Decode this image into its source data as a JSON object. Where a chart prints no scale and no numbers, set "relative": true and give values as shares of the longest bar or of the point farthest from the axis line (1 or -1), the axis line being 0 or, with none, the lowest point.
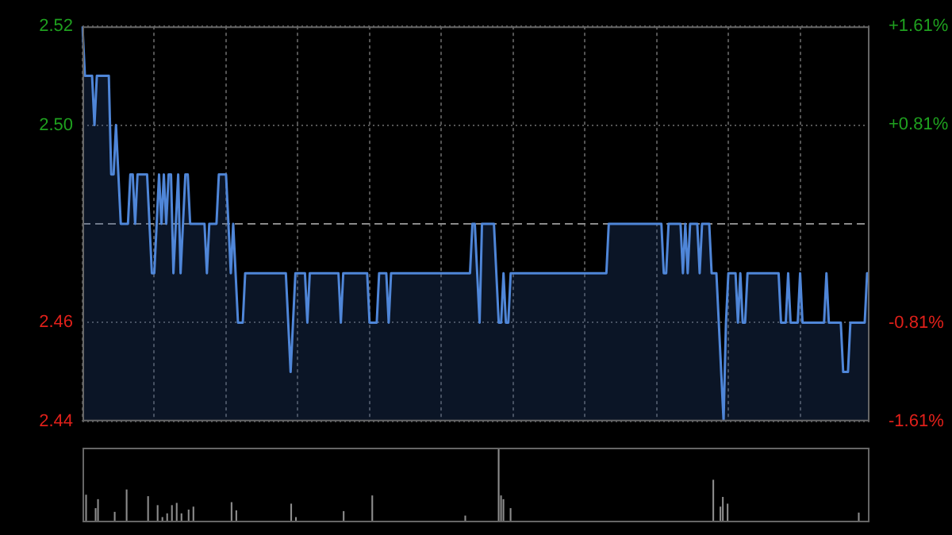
{
  "chart_data": [
    {
      "type": "area",
      "categories": [
        null,
        null,
        null,
        null,
        null,
        null,
        null,
        null,
        null,
        null,
        null,
        null,
        null,
        null,
        null,
        null,
        null,
        null,
        null,
        null,
        null,
        null,
        null,
        null,
        null,
        null,
        null,
        null,
        null,
        null,
        null,
        null,
        null,
        null,
        null,
        null,
        null,
        null,
        null,
        null,
        null,
        null,
        null,
        null,
        null,
        null,
        null,
        null,
        null,
        null,
        null,
        null,
        null,
        null,
        null,
        null,
        null,
        null,
        null,
        null,
        null,
        null,
        null,
        null,
        null,
        null,
        null,
        null,
        null,
        null,
        null,
        null,
        null,
        null,
        null,
        null,
        null,
        null,
        null,
        null,
        null,
        null,
        null,
        null,
        null,
        null,
        null,
        null,
        null,
        null,
        null,
        null,
        null,
        null,
        null,
        null,
        null,
        null,
        null,
        null,
        null,
        null,
        null,
        null,
        null,
        null,
        null,
        null,
        null,
        null,
        null,
        null,
        null,
        null,
        null,
        null,
        null,
        null,
        null,
        null,
        null,
        null,
        null,
        null,
        null,
        null,
        null,
        null,
        null,
        null,
        null,
        null,
        null,
        null,
        null,
        null,
        null,
        null,
        null,
        null,
        null,
        null,
        null,
        null,
        null,
        null,
        null,
        null,
        null,
        null,
        null,
        null,
        null,
        null,
        null,
        null,
        null,
        null,
        null,
        null,
        null,
        null,
        null,
        null,
        null,
        null,
        null,
        null,
        null,
        null,
        null,
        null,
        null,
        null,
        null,
        null,
        null,
        null,
        null,
        null,
        null,
        null,
        null,
        null,
        null,
        null,
        null,
        null,
        null,
        null,
        null,
        null,
        null,
        null,
        null,
        null,
        null,
        null,
        null,
        null,
        null,
        null,
        null,
        null,
        null,
        null,
        null,
        null,
        null,
        null,
        null,
        null,
        null,
        null,
        null,
        null,
        null,
        null,
        null,
        null,
        null,
        null,
        null,
        null,
        null,
        null,
        null,
        null,
        null,
        null,
        null,
        null,
        null,
        null,
        null,
        null,
        null,
        null,
        null,
        null,
        null,
        null,
        null,
        null,
        null,
        null,
        null,
        null,
        null,
        null,
        null,
        null,
        null,
        null,
        null,
        null,
        null,
        null,
        null,
        null,
        null,
        null,
        null,
        null,
        null,
        null,
        null,
        null,
        null,
        null,
        null,
        null,
        null,
        null,
        null,
        null,
        null,
        null,
        null,
        null,
        null,
        null,
        null,
        null,
        null,
        null,
        null,
        null,
        null,
        null,
        null,
        null,
        null,
        null,
        null,
        null,
        null,
        null,
        null,
        null,
        null,
        null,
        null,
        null,
        null,
        null,
        null,
        null,
        null,
        null,
        null,
        null,
        null,
        null,
        null,
        null,
        null,
        null,
        null,
        null,
        null,
        null,
        null,
        null,
        null,
        null,
        null,
        null,
        null,
        null
      ],
      "series": [
        {
          "color": "#4f86d8",
          "values": [
            2.52,
            2.51,
            2.51,
            2.51,
            2.51,
            2.5,
            2.51,
            2.51,
            2.51,
            2.51,
            2.51,
            2.51,
            2.49,
            2.49,
            2.5,
            2.49,
            2.48,
            2.48,
            2.48,
            2.48,
            2.49,
            2.49,
            2.48,
            2.49,
            2.49,
            2.49,
            2.49,
            2.49,
            2.48,
            2.47,
            2.47,
            2.48,
            2.49,
            2.48,
            2.49,
            2.48,
            2.49,
            2.49,
            2.47,
            2.48,
            2.49,
            2.47,
            2.48,
            2.49,
            2.49,
            2.48,
            2.48,
            2.48,
            2.48,
            2.48,
            2.48,
            2.48,
            2.47,
            2.48,
            2.48,
            2.48,
            2.48,
            2.49,
            2.49,
            2.49,
            2.49,
            2.48,
            2.47,
            2.48,
            2.47,
            2.46,
            2.46,
            2.46,
            2.47,
            2.47,
            2.47,
            2.47,
            2.47,
            2.47,
            2.47,
            2.47,
            2.47,
            2.47,
            2.47,
            2.47,
            2.47,
            2.47,
            2.47,
            2.47,
            2.47,
            2.47,
            2.46,
            2.45,
            2.46,
            2.47,
            2.47,
            2.47,
            2.47,
            2.47,
            2.46,
            2.47,
            2.47,
            2.47,
            2.47,
            2.47,
            2.47,
            2.47,
            2.47,
            2.47,
            2.47,
            2.47,
            2.47,
            2.47,
            2.46,
            2.47,
            2.47,
            2.47,
            2.47,
            2.47,
            2.47,
            2.47,
            2.47,
            2.47,
            2.47,
            2.47,
            2.46,
            2.46,
            2.46,
            2.46,
            2.47,
            2.47,
            2.47,
            2.47,
            2.46,
            2.47,
            2.47,
            2.47,
            2.47,
            2.47,
            2.47,
            2.47,
            2.47,
            2.47,
            2.47,
            2.47,
            2.47,
            2.47,
            2.47,
            2.47,
            2.47,
            2.47,
            2.47,
            2.47,
            2.47,
            2.47,
            2.47,
            2.47,
            2.47,
            2.47,
            2.47,
            2.47,
            2.47,
            2.47,
            2.47,
            2.47,
            2.47,
            2.47,
            2.47,
            2.48,
            2.48,
            2.47,
            2.46,
            2.48,
            2.48,
            2.48,
            2.48,
            2.48,
            2.48,
            2.47,
            2.46,
            2.46,
            2.47,
            2.46,
            2.46,
            2.47,
            2.47,
            2.47,
            2.47,
            2.47,
            2.47,
            2.47,
            2.47,
            2.47,
            2.47,
            2.47,
            2.47,
            2.47,
            2.47,
            2.47,
            2.47,
            2.47,
            2.47,
            2.47,
            2.47,
            2.47,
            2.47,
            2.47,
            2.47,
            2.47,
            2.47,
            2.47,
            2.47,
            2.47,
            2.47,
            2.47,
            2.47,
            2.47,
            2.47,
            2.47,
            2.47,
            2.47,
            2.47,
            2.47,
            2.47,
            2.47,
            2.48,
            2.48,
            2.48,
            2.48,
            2.48,
            2.48,
            2.48,
            2.48,
            2.48,
            2.48,
            2.48,
            2.48,
            2.48,
            2.48,
            2.48,
            2.48,
            2.48,
            2.48,
            2.48,
            2.48,
            2.48,
            2.48,
            2.48,
            2.47,
            2.47,
            2.48,
            2.48,
            2.48,
            2.48,
            2.48,
            2.48,
            2.47,
            2.48,
            2.47,
            2.48,
            2.48,
            2.48,
            2.48,
            2.47,
            2.48,
            2.48,
            2.48,
            2.48,
            2.47,
            2.47,
            2.47,
            2.46,
            2.45,
            2.44,
            2.46,
            2.47,
            2.47,
            2.47,
            2.47,
            2.46,
            2.47,
            2.46,
            2.46,
            2.47,
            2.47,
            2.47,
            2.47,
            2.47,
            2.47,
            2.47,
            2.47,
            2.47,
            2.47,
            2.47,
            2.47,
            2.47,
            2.47,
            2.46,
            2.46,
            2.46,
            2.47,
            2.46,
            2.46,
            2.46,
            2.46,
            2.47,
            2.46,
            2.46,
            2.46,
            2.46,
            2.46,
            2.46,
            2.46,
            2.46,
            2.46,
            2.46,
            2.47,
            2.46,
            2.46,
            2.46,
            2.46,
            2.46,
            2.46,
            2.45,
            2.45,
            2.45,
            2.46,
            2.46,
            2.46,
            2.46,
            2.46,
            2.46,
            2.46,
            2.47,
            2.47
          ]
        }
      ],
      "ylim": [
        2.44,
        2.52
      ],
      "yticks": [
        {
          "value": 2.44,
          "label": "2.44"
        },
        {
          "value": 2.46,
          "label": "2.46"
        },
        {
          "value": 2.5,
          "label": "2.50"
        },
        {
          "value": 2.52,
          "label": "2.52"
        }
      ],
      "y2lim": [
        -1.61,
        1.61
      ],
      "y2ticks": [
        {
          "value": -1.61,
          "label": "-1.61%"
        },
        {
          "value": -0.81,
          "label": "-0.81%"
        },
        {
          "value": 0.81,
          "label": "+0.81%"
        },
        {
          "value": 1.61,
          "label": "+1.61%"
        }
      ],
      "ref_lines": [
        {
          "axis": "y",
          "value": 2.48,
          "color": "#8a8a8a",
          "line_style": "dashed"
        }
      ],
      "grid": true,
      "tick_labels": "y",
      "legend": false,
      "marker": "none",
      "line_style": "solid"
    },
    {
      "type": "bar",
      "relative": true,
      "categories": [
        null,
        null,
        null,
        null,
        null,
        null,
        null,
        null,
        null,
        null,
        null,
        null,
        null,
        null,
        null,
        null,
        null,
        null,
        null,
        null,
        null,
        null,
        null,
        null,
        null,
        null,
        null,
        null,
        null,
        null,
        null,
        null,
        null,
        null,
        null,
        null,
        null,
        null,
        null,
        null,
        null,
        null,
        null,
        null,
        null,
        null,
        null,
        null,
        null,
        null,
        null,
        null,
        null,
        null,
        null,
        null,
        null,
        null,
        null,
        null,
        null,
        null,
        null,
        null,
        null,
        null,
        null,
        null,
        null,
        null,
        null,
        null,
        null,
        null,
        null,
        null,
        null,
        null,
        null,
        null,
        null,
        null,
        null,
        null,
        null,
        null,
        null,
        null,
        null,
        null,
        null,
        null,
        null,
        null,
        null,
        null,
        null,
        null,
        null,
        null,
        null,
        null,
        null,
        null,
        null,
        null,
        null,
        null,
        null,
        null,
        null,
        null,
        null,
        null,
        null,
        null,
        null,
        null,
        null,
        null,
        null,
        null,
        null,
        null,
        null,
        null,
        null,
        null,
        null,
        null,
        null,
        null,
        null,
        null,
        null,
        null,
        null,
        null,
        null,
        null,
        null,
        null,
        null,
        null,
        null,
        null,
        null,
        null,
        null,
        null,
        null,
        null,
        null,
        null,
        null,
        null,
        null,
        null,
        null,
        null,
        null,
        null,
        null,
        null,
        null,
        null,
        null,
        null,
        null,
        null,
        null,
        null,
        null,
        null,
        null,
        null,
        null,
        null,
        null,
        null,
        null,
        null,
        null,
        null,
        null,
        null,
        null,
        null,
        null,
        null,
        null,
        null,
        null,
        null,
        null,
        null,
        null,
        null,
        null,
        null,
        null,
        null,
        null,
        null,
        null,
        null,
        null,
        null,
        null,
        null,
        null,
        null,
        null,
        null,
        null,
        null,
        null,
        null,
        null,
        null,
        null,
        null,
        null,
        null,
        null,
        null,
        null,
        null,
        null,
        null,
        null,
        null,
        null,
        null,
        null,
        null,
        null,
        null,
        null,
        null,
        null,
        null,
        null,
        null,
        null,
        null,
        null,
        null,
        null,
        null,
        null,
        null,
        null,
        null,
        null,
        null,
        null,
        null,
        null,
        null,
        null,
        null,
        null,
        null,
        null,
        null,
        null,
        null,
        null,
        null,
        null,
        null,
        null,
        null,
        null,
        null,
        null,
        null,
        null,
        null,
        null,
        null,
        null,
        null,
        null,
        null,
        null,
        null,
        null,
        null,
        null,
        null,
        null,
        null,
        null,
        null,
        null,
        null,
        null,
        null,
        null,
        null,
        null,
        null,
        null,
        null,
        null,
        null,
        null,
        null,
        null,
        null,
        null,
        null,
        null,
        null,
        null,
        null,
        null,
        null,
        null,
        null,
        null,
        null,
        null,
        null,
        null,
        null,
        null,
        null
      ],
      "values": [
        0.02,
        0.37,
        0.02,
        0.02,
        0.02,
        0.19,
        0.31,
        0.02,
        0.02,
        0.02,
        0.02,
        0.02,
        0.02,
        0.14,
        0.02,
        0.02,
        0.02,
        0.02,
        0.44,
        0.02,
        0.02,
        0.02,
        0.02,
        0.02,
        0.02,
        0.02,
        0.02,
        0.35,
        0.02,
        0.02,
        0.02,
        0.23,
        0.02,
        0.07,
        0.02,
        0.12,
        0.02,
        0.23,
        0.02,
        0.26,
        0.02,
        0.12,
        0.02,
        0.02,
        0.17,
        0.02,
        0.21,
        0.02,
        0.02,
        0.02,
        0.02,
        0.02,
        0.02,
        0.02,
        0.02,
        0.02,
        0.02,
        0.02,
        0.02,
        0.02,
        0.02,
        0.02,
        0.27,
        0.02,
        0.16,
        0.02,
        0.02,
        0.02,
        0.02,
        0.02,
        0.02,
        0.02,
        0.02,
        0.02,
        0.02,
        0.02,
        0.02,
        0.02,
        0.02,
        0.02,
        0.02,
        0.02,
        0.02,
        0.02,
        0.02,
        0.02,
        0.02,
        0.25,
        0.02,
        0.07,
        0.02,
        0.02,
        0.02,
        0.02,
        0.02,
        0.02,
        0.02,
        0.02,
        0.02,
        0.02,
        0.02,
        0.02,
        0.02,
        0.02,
        0.02,
        0.02,
        0.02,
        0.02,
        0.02,
        0.15,
        0.02,
        0.02,
        0.02,
        0.02,
        0.02,
        0.02,
        0.02,
        0.02,
        0.02,
        0.02,
        0.02,
        0.36,
        0.02,
        0.02,
        0.02,
        0.02,
        0.02,
        0.02,
        0.02,
        0.02,
        0.02,
        0.02,
        0.02,
        0.02,
        0.02,
        0.02,
        0.02,
        0.02,
        0.02,
        0.02,
        0.02,
        0.02,
        0.02,
        0.02,
        0.02,
        0.02,
        0.02,
        0.02,
        0.02,
        0.02,
        0.02,
        0.02,
        0.02,
        0.02,
        0.02,
        0.02,
        0.02,
        0.02,
        0.02,
        0.02,
        0.09,
        0.02,
        0.02,
        0.02,
        0.02,
        0.02,
        0.02,
        0.02,
        0.02,
        0.02,
        0.02,
        0.02,
        0.02,
        0.02,
        1,
        0.36,
        0.31,
        0.02,
        0.02,
        0.19,
        0.02,
        0.02,
        0.02,
        0.02,
        0.02,
        0.02,
        0.02,
        0.02,
        0.02,
        0.02,
        0.02,
        0.02,
        0.02,
        0.02,
        0.02,
        0.02,
        0.02,
        0.02,
        0.02,
        0.02,
        0.02,
        0.02,
        0.02,
        0.02,
        0.02,
        0.02,
        0.02,
        0.02,
        0.02,
        0.02,
        0.02,
        0.02,
        0.02,
        0.02,
        0.02,
        0.02,
        0.02,
        0.02,
        0.02,
        0.02,
        0.02,
        0.02,
        0.02,
        0.02,
        0.02,
        0.02,
        0.02,
        0.02,
        0.02,
        0.02,
        0.02,
        0.02,
        0.02,
        0.02,
        0.02,
        0.02,
        0.02,
        0.02,
        0.02,
        0.02,
        0.02,
        0.02,
        0.02,
        0.02,
        0.02,
        0.02,
        0.02,
        0.02,
        0.02,
        0.02,
        0.02,
        0.02,
        0.02,
        0.02,
        0.02,
        0.02,
        0.02,
        0.02,
        0.02,
        0.02,
        0.02,
        0.02,
        0.02,
        0.02,
        0.57,
        0.02,
        0.02,
        0.21,
        0.34,
        0.02,
        0.25,
        0.02,
        0.02,
        0.02,
        0.02,
        0.02,
        0.02,
        0.02,
        0.02,
        0.02,
        0.02,
        0.02,
        0.02,
        0.02,
        0.02,
        0.02,
        0.02,
        0.02,
        0.02,
        0.02,
        0.02,
        0.02,
        0.02,
        0.02,
        0.02,
        0.02,
        0.02,
        0.02,
        0.02,
        0.02,
        0.02,
        0.02,
        0.02,
        0.02,
        0.02,
        0.02,
        0.02,
        0.02,
        0.02,
        0.02,
        0.02,
        0.02,
        0.02,
        0.02,
        0.02,
        0.02,
        0.02,
        0.02,
        0.02,
        0.02,
        0.02,
        0.02,
        0.02,
        0.02,
        0.02,
        0.13,
        0.02,
        0.02,
        0.02,
        0.02
      ],
      "color": "#8c8c8c",
      "tick_labels": false,
      "legend": false
    }
  ]
}
